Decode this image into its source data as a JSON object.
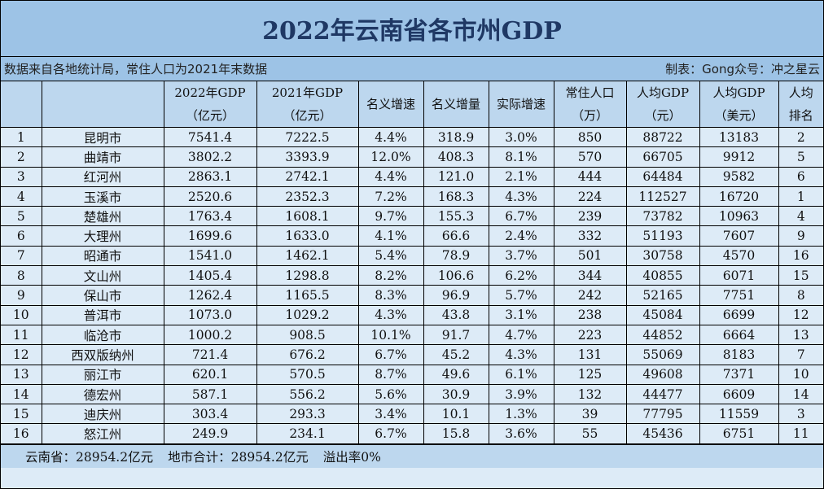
{
  "title": "2022年云南省各市州GDP",
  "source_note": "数据来自各地统计局，常住人口为2021年末数据",
  "credit": "制表：Gong众号：冲之星云",
  "colors": {
    "title_bg": "#9dc3e6",
    "header_bg": "#bdd7ee",
    "row_bg": "#ddebf7",
    "title_text": "#1f3864"
  },
  "columns": [
    {
      "line1": "",
      "line2": ""
    },
    {
      "line1": "",
      "line2": ""
    },
    {
      "line1": "2022年GDP",
      "line2": "（亿元）"
    },
    {
      "line1": "2021年GDP",
      "line2": "（亿元）"
    },
    {
      "line1": "名义增速",
      "line2": ""
    },
    {
      "line1": "名义增量",
      "line2": ""
    },
    {
      "line1": "实际增速",
      "line2": ""
    },
    {
      "line1": "常住人口",
      "line2": "（万）"
    },
    {
      "line1": "人均GDP",
      "line2": "（元）"
    },
    {
      "line1": "人均GDP",
      "line2": "（美元）"
    },
    {
      "line1": "人均",
      "line2": "排名"
    }
  ],
  "rows": [
    [
      "1",
      "昆明市",
      "7541.4",
      "7222.5",
      "4.4%",
      "318.9",
      "3.0%",
      "850",
      "88722",
      "13183",
      "2"
    ],
    [
      "2",
      "曲靖市",
      "3802.2",
      "3393.9",
      "12.0%",
      "408.3",
      "8.1%",
      "570",
      "66705",
      "9912",
      "5"
    ],
    [
      "3",
      "红河州",
      "2863.1",
      "2742.1",
      "4.4%",
      "121.0",
      "2.1%",
      "444",
      "64484",
      "9582",
      "6"
    ],
    [
      "4",
      "玉溪市",
      "2520.6",
      "2352.3",
      "7.2%",
      "168.3",
      "4.3%",
      "224",
      "112527",
      "16720",
      "1"
    ],
    [
      "5",
      "楚雄州",
      "1763.4",
      "1608.1",
      "9.7%",
      "155.3",
      "6.7%",
      "239",
      "73782",
      "10963",
      "4"
    ],
    [
      "6",
      "大理州",
      "1699.6",
      "1633.0",
      "4.1%",
      "66.6",
      "2.4%",
      "332",
      "51193",
      "7607",
      "9"
    ],
    [
      "7",
      "昭通市",
      "1541.0",
      "1462.1",
      "5.4%",
      "78.9",
      "3.7%",
      "501",
      "30758",
      "4570",
      "16"
    ],
    [
      "8",
      "文山州",
      "1405.4",
      "1298.8",
      "8.2%",
      "106.6",
      "6.2%",
      "344",
      "40855",
      "6071",
      "15"
    ],
    [
      "9",
      "保山市",
      "1262.4",
      "1165.5",
      "8.3%",
      "96.9",
      "5.7%",
      "242",
      "52165",
      "7751",
      "8"
    ],
    [
      "10",
      "普洱市",
      "1073.0",
      "1029.2",
      "4.3%",
      "43.8",
      "3.1%",
      "238",
      "45084",
      "6699",
      "12"
    ],
    [
      "11",
      "临沧市",
      "1000.2",
      "908.5",
      "10.1%",
      "91.7",
      "4.7%",
      "223",
      "44852",
      "6664",
      "13"
    ],
    [
      "12",
      "西双版纳州",
      "721.4",
      "676.2",
      "6.7%",
      "45.2",
      "4.3%",
      "131",
      "55069",
      "8183",
      "7"
    ],
    [
      "13",
      "丽江市",
      "620.1",
      "570.5",
      "8.7%",
      "49.6",
      "6.1%",
      "125",
      "49608",
      "7371",
      "10"
    ],
    [
      "14",
      "德宏州",
      "587.1",
      "556.2",
      "5.6%",
      "30.9",
      "3.9%",
      "132",
      "44477",
      "6609",
      "14"
    ],
    [
      "15",
      "迪庆州",
      "303.4",
      "293.3",
      "3.4%",
      "10.1",
      "1.3%",
      "39",
      "77795",
      "11559",
      "3"
    ],
    [
      "16",
      "怒江州",
      "249.9",
      "234.1",
      "6.7%",
      "15.8",
      "3.6%",
      "55",
      "45436",
      "6751",
      "11"
    ]
  ],
  "footer": {
    "province_total": "云南省：28954.2亿元",
    "city_sum": "地市合计：28954.2亿元",
    "overflow": "溢出率0%"
  }
}
